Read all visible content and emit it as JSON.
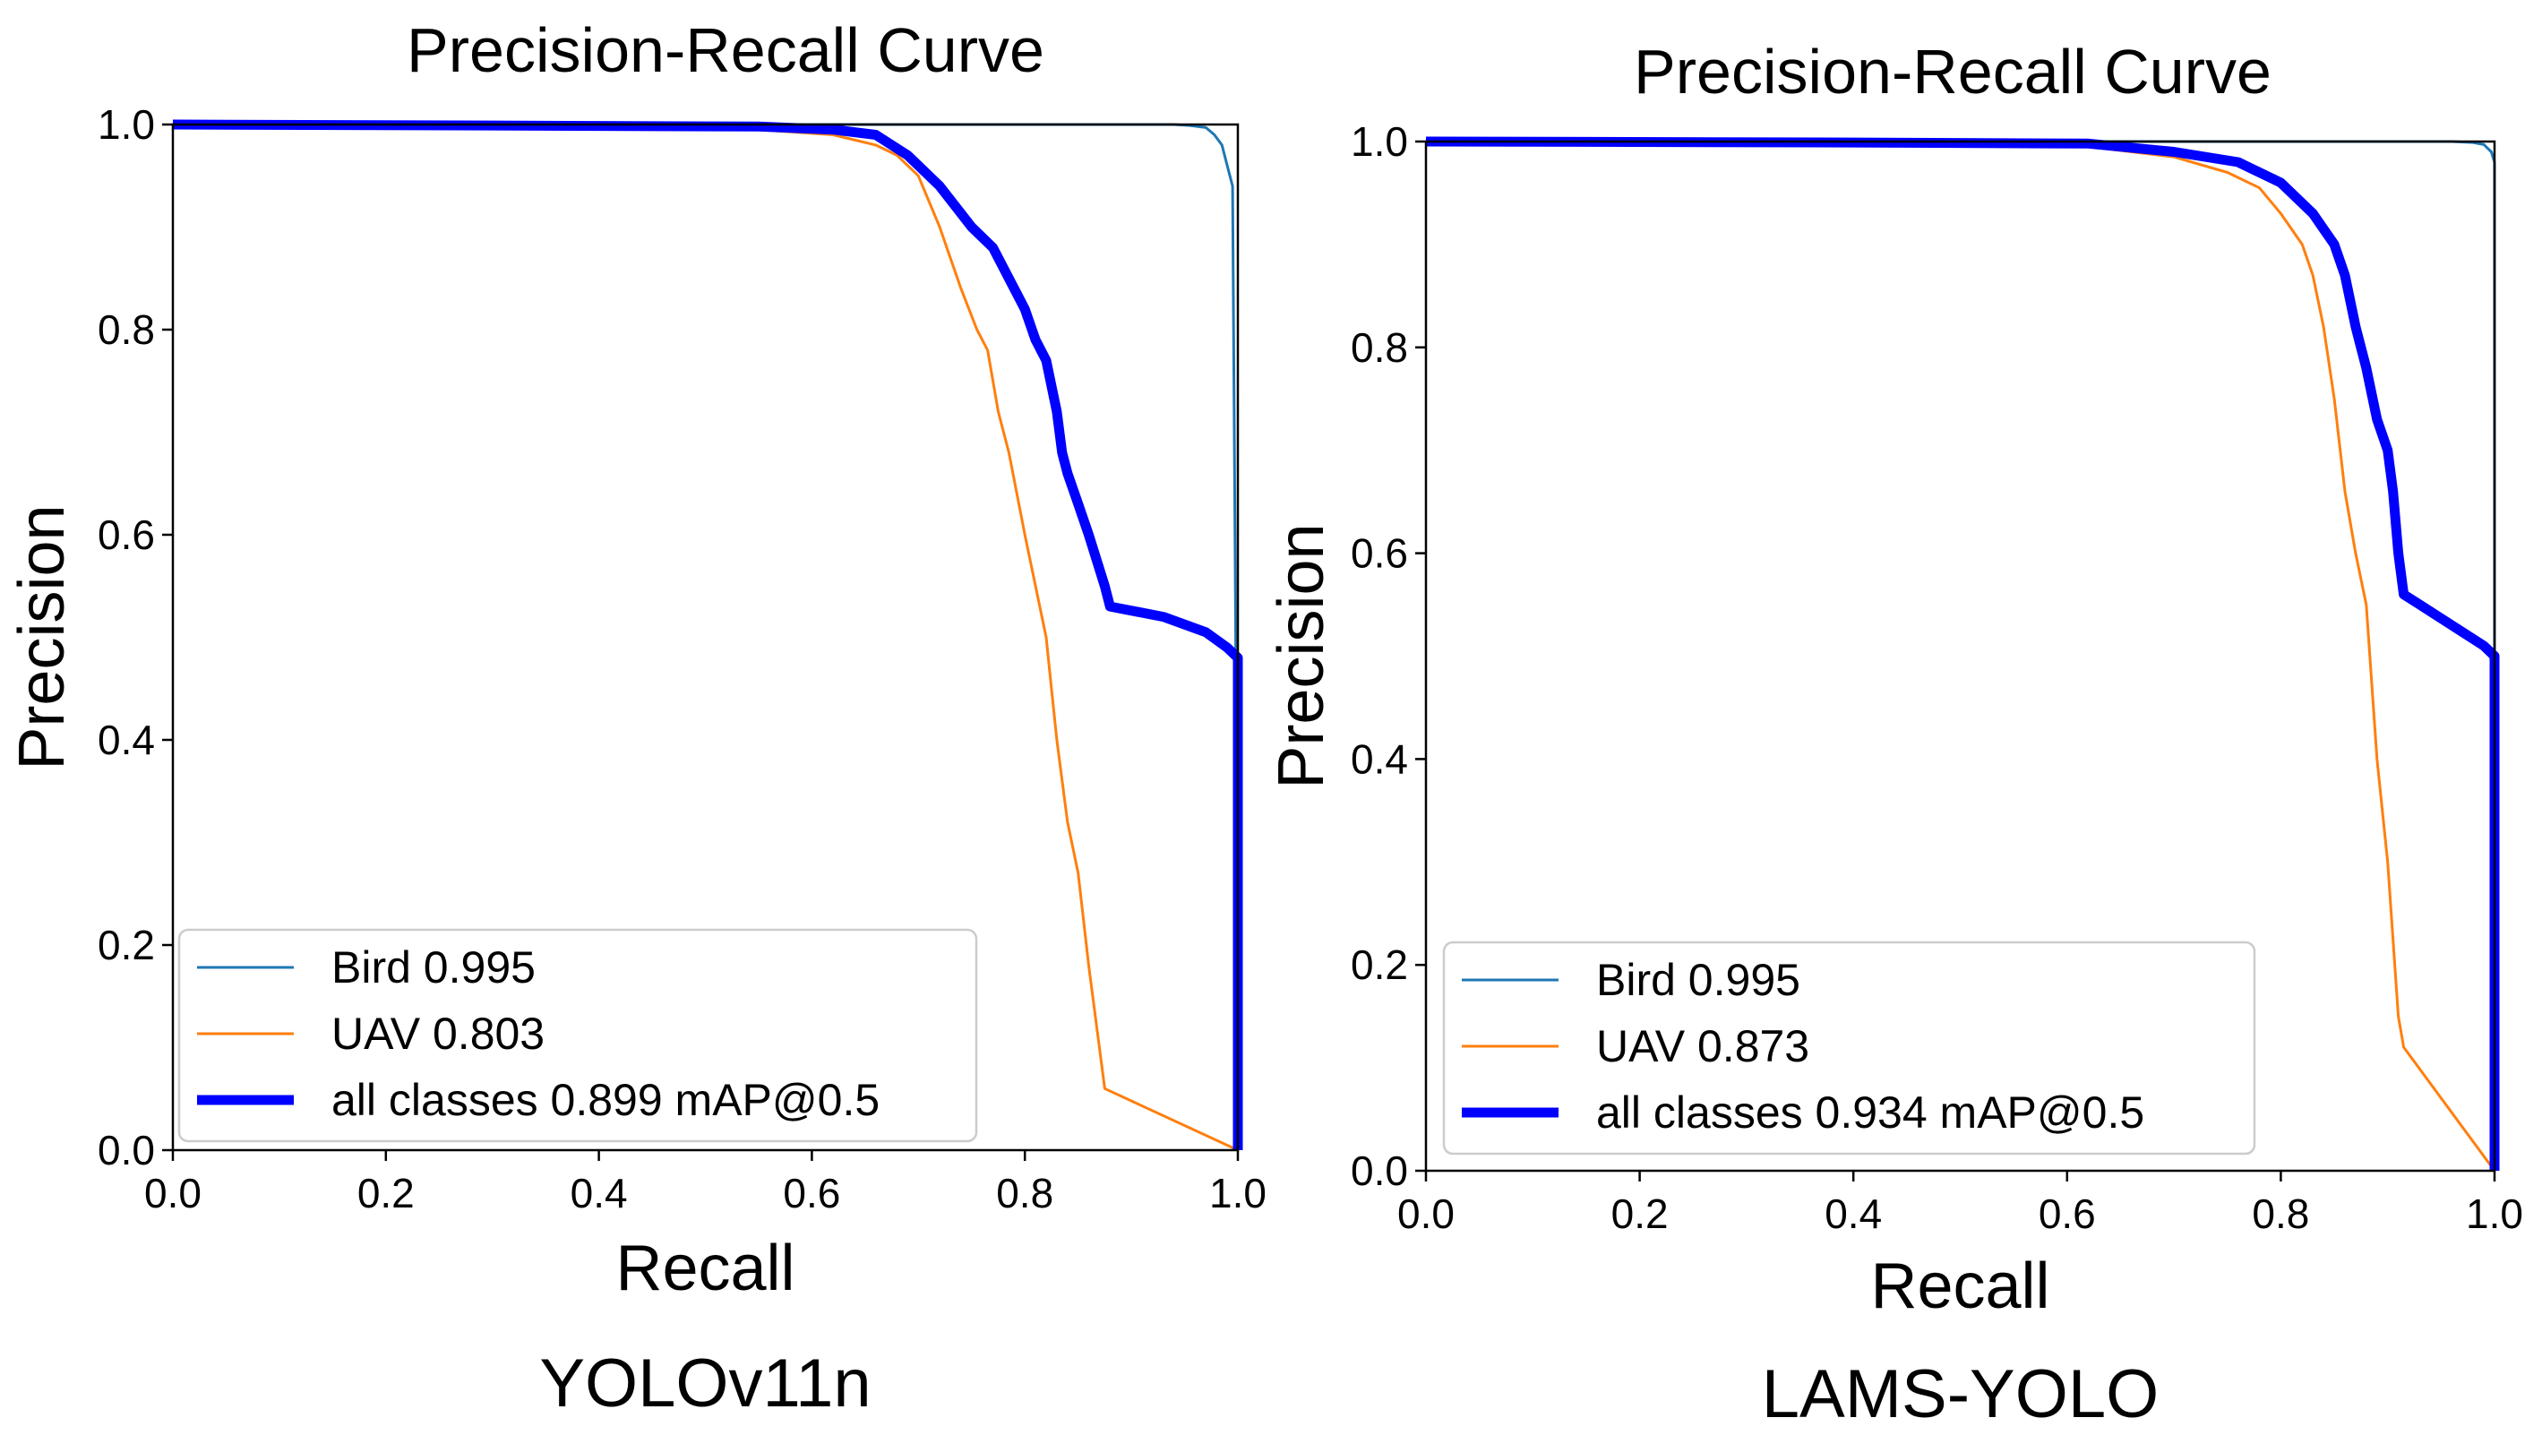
{
  "chart_data": [
    {
      "type": "line",
      "title": "Precision-Recall Curve",
      "xlabel": "Recall",
      "ylabel": "Precision",
      "caption": "YOLOv11n",
      "xlim": [
        0,
        1
      ],
      "ylim": [
        0,
        1
      ],
      "xticks": [
        "0.0",
        "0.2",
        "0.4",
        "0.6",
        "0.8",
        "1.0"
      ],
      "yticks": [
        "0.0",
        "0.2",
        "0.4",
        "0.6",
        "0.8",
        "1.0"
      ],
      "legend_position": "bottom-left",
      "series": [
        {
          "name": "Bird",
          "legend_label": "Bird 0.995",
          "color": "#1f77b4",
          "width": 3,
          "x": [
            0.0,
            0.4,
            0.6,
            0.94,
            0.955,
            0.97,
            0.978,
            0.985,
            0.99,
            0.995,
            0.998,
            1.0
          ],
          "y": [
            1.0,
            1.0,
            1.0,
            1.0,
            0.999,
            0.997,
            0.99,
            0.98,
            0.96,
            0.94,
            0.5,
            0.0
          ]
        },
        {
          "name": "UAV",
          "legend_label": "UAV 0.803",
          "color": "#ff7f0e",
          "width": 3,
          "x": [
            0.0,
            0.3,
            0.55,
            0.62,
            0.66,
            0.68,
            0.7,
            0.72,
            0.74,
            0.755,
            0.765,
            0.775,
            0.785,
            0.8,
            0.81,
            0.82,
            0.825,
            0.83,
            0.84,
            0.85,
            0.86,
            0.875,
            1.0
          ],
          "y": [
            1.0,
            0.998,
            0.995,
            0.99,
            0.98,
            0.97,
            0.95,
            0.9,
            0.84,
            0.8,
            0.78,
            0.72,
            0.68,
            0.6,
            0.55,
            0.5,
            0.45,
            0.4,
            0.32,
            0.27,
            0.18,
            0.06,
            0.0
          ]
        },
        {
          "name": "all classes",
          "legend_label": "all classes 0.899 mAP@0.5",
          "color": "#0000ff",
          "width": 11,
          "x": [
            0.0,
            0.3,
            0.55,
            0.62,
            0.66,
            0.69,
            0.72,
            0.75,
            0.77,
            0.79,
            0.8,
            0.81,
            0.82,
            0.83,
            0.835,
            0.84,
            0.85,
            0.86,
            0.875,
            0.88,
            0.93,
            0.97,
            0.99,
            1.0,
            1.0
          ],
          "y": [
            1.0,
            0.999,
            0.998,
            0.995,
            0.99,
            0.97,
            0.94,
            0.9,
            0.88,
            0.84,
            0.82,
            0.79,
            0.77,
            0.72,
            0.68,
            0.66,
            0.63,
            0.6,
            0.55,
            0.53,
            0.52,
            0.505,
            0.49,
            0.48,
            0.0
          ]
        }
      ]
    },
    {
      "type": "line",
      "title": "Precision-Recall Curve",
      "xlabel": "Recall",
      "ylabel": "Precision",
      "caption": "LAMS-YOLO",
      "xlim": [
        0,
        1
      ],
      "ylim": [
        0,
        1
      ],
      "xticks": [
        "0.0",
        "0.2",
        "0.4",
        "0.6",
        "0.8",
        "1.0"
      ],
      "yticks": [
        "0.0",
        "0.2",
        "0.4",
        "0.6",
        "0.8",
        "1.0"
      ],
      "legend_position": "bottom-left",
      "series": [
        {
          "name": "Bird",
          "legend_label": "Bird 0.995",
          "color": "#1f77b4",
          "width": 3,
          "x": [
            0.0,
            0.5,
            0.9,
            0.96,
            0.98,
            0.99,
            0.997,
            1.0,
            1.0
          ],
          "y": [
            1.0,
            1.0,
            1.0,
            1.0,
            0.999,
            0.997,
            0.99,
            0.98,
            0.0
          ]
        },
        {
          "name": "UAV",
          "legend_label": "UAV 0.873",
          "color": "#ff7f0e",
          "width": 3,
          "x": [
            0.0,
            0.4,
            0.62,
            0.7,
            0.75,
            0.78,
            0.8,
            0.82,
            0.83,
            0.84,
            0.85,
            0.86,
            0.87,
            0.88,
            0.89,
            0.9,
            0.91,
            0.915,
            1.0
          ],
          "y": [
            1.0,
            0.999,
            0.995,
            0.985,
            0.97,
            0.955,
            0.93,
            0.9,
            0.87,
            0.82,
            0.75,
            0.66,
            0.6,
            0.55,
            0.4,
            0.3,
            0.15,
            0.12,
            0.0
          ]
        },
        {
          "name": "all classes",
          "legend_label": "all classes 0.934 mAP@0.5",
          "color": "#0000ff",
          "width": 11,
          "x": [
            0.0,
            0.4,
            0.62,
            0.7,
            0.76,
            0.8,
            0.83,
            0.85,
            0.86,
            0.87,
            0.88,
            0.89,
            0.9,
            0.905,
            0.91,
            0.915,
            0.93,
            0.96,
            0.99,
            1.0,
            1.0
          ],
          "y": [
            1.0,
            0.999,
            0.998,
            0.99,
            0.98,
            0.96,
            0.93,
            0.9,
            0.87,
            0.82,
            0.78,
            0.73,
            0.7,
            0.66,
            0.6,
            0.56,
            0.55,
            0.53,
            0.51,
            0.5,
            0.0
          ]
        }
      ]
    }
  ]
}
